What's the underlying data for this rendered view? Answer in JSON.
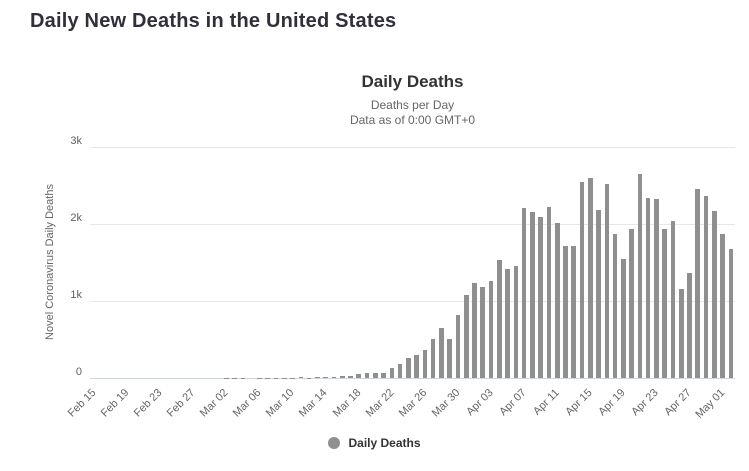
{
  "page": {
    "heading": "Daily New Deaths in the United States"
  },
  "chart": {
    "title": "Daily Deaths",
    "subtitle_line1": "Deaths per Day",
    "subtitle_line2": "Data as of 0:00 GMT+0",
    "y_axis_title": "Novel Coronavirus Daily Deaths",
    "legend_label": "Daily Deaths",
    "colors": {
      "bar": "#8f8f8f",
      "legend_marker": "#8f8f8f",
      "gridline": "#e7e7e7",
      "axis_line": "#ccd6eb",
      "tick_label": "#666666",
      "title": "#333333",
      "subtitle": "#666666"
    }
  },
  "chart_data": {
    "type": "bar",
    "title": "Daily Deaths",
    "subtitle": [
      "Deaths per Day",
      "Data as of 0:00 GMT+0"
    ],
    "xlabel": "",
    "ylabel": "Novel Coronavirus Daily Deaths",
    "ylim": [
      0,
      3000
    ],
    "grid": true,
    "legend_position": "bottom",
    "series_name": "Daily Deaths",
    "x_tick_interval": 4,
    "yticks": [
      {
        "value": 0,
        "label": "0"
      },
      {
        "value": 1000,
        "label": "1k"
      },
      {
        "value": 2000,
        "label": "2k"
      },
      {
        "value": 3000,
        "label": "3k"
      }
    ],
    "categories": [
      "Feb 15",
      "Feb 16",
      "Feb 17",
      "Feb 18",
      "Feb 19",
      "Feb 20",
      "Feb 21",
      "Feb 22",
      "Feb 23",
      "Feb 24",
      "Feb 25",
      "Feb 26",
      "Feb 27",
      "Feb 28",
      "Feb 29",
      "Mar 01",
      "Mar 02",
      "Mar 03",
      "Mar 04",
      "Mar 05",
      "Mar 06",
      "Mar 07",
      "Mar 08",
      "Mar 09",
      "Mar 10",
      "Mar 11",
      "Mar 12",
      "Mar 13",
      "Mar 14",
      "Mar 15",
      "Mar 16",
      "Mar 17",
      "Mar 18",
      "Mar 19",
      "Mar 20",
      "Mar 21",
      "Mar 22",
      "Mar 23",
      "Mar 24",
      "Mar 25",
      "Mar 26",
      "Mar 27",
      "Mar 28",
      "Mar 29",
      "Mar 30",
      "Mar 31",
      "Apr 01",
      "Apr 02",
      "Apr 03",
      "Apr 04",
      "Apr 05",
      "Apr 06",
      "Apr 07",
      "Apr 08",
      "Apr 09",
      "Apr 10",
      "Apr 11",
      "Apr 12",
      "Apr 13",
      "Apr 14",
      "Apr 15",
      "Apr 16",
      "Apr 17",
      "Apr 18",
      "Apr 19",
      "Apr 20",
      "Apr 21",
      "Apr 22",
      "Apr 23",
      "Apr 24",
      "Apr 25",
      "Apr 26",
      "Apr 27",
      "Apr 28",
      "Apr 29",
      "Apr 30",
      "May 01",
      "May 02"
    ],
    "values": [
      0,
      0,
      0,
      0,
      0,
      0,
      0,
      0,
      0,
      0,
      0,
      0,
      0,
      0,
      1,
      1,
      4,
      3,
      2,
      1,
      3,
      2,
      3,
      4,
      4,
      8,
      3,
      10,
      8,
      11,
      25,
      30,
      55,
      65,
      65,
      60,
      130,
      180,
      255,
      300,
      360,
      505,
      655,
      505,
      820,
      1080,
      1235,
      1180,
      1260,
      1530,
      1420,
      1460,
      2205,
      2150,
      2085,
      2220,
      2010,
      1710,
      1710,
      2540,
      2600,
      2185,
      2515,
      1865,
      1550,
      1930,
      2650,
      2335,
      2320,
      1940,
      2040,
      1150,
      1370,
      2450,
      2370,
      2170,
      1875,
      1680
    ]
  }
}
